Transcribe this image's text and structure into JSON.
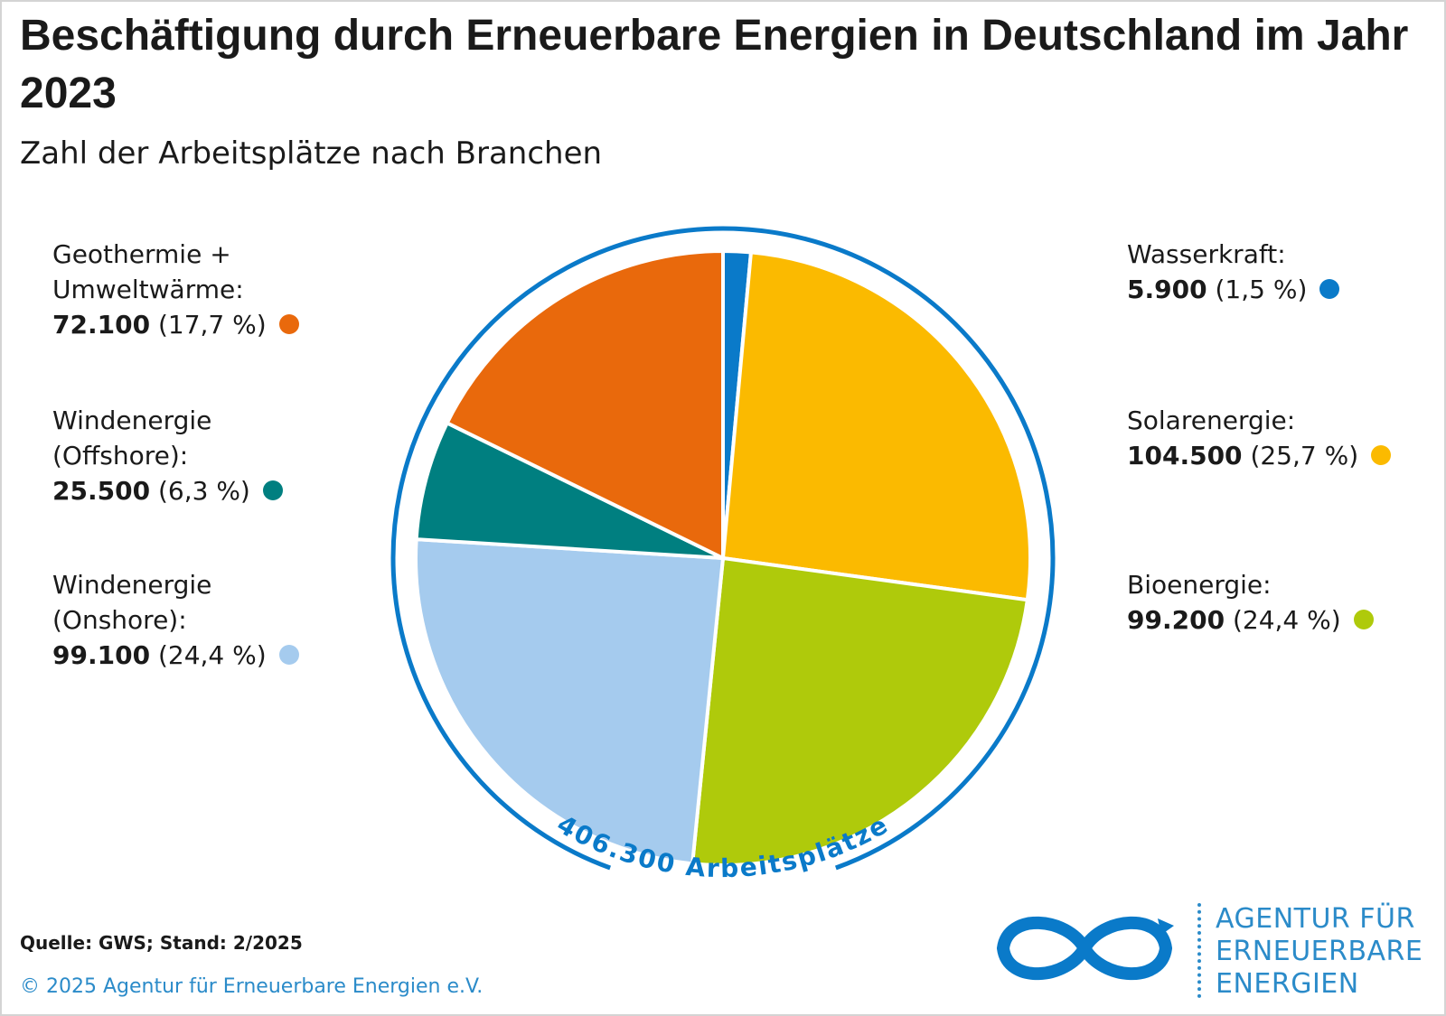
{
  "title": "Beschäftigung durch Erneuerbare Energien in Deutschland im Jahr 2023",
  "subtitle": "Zahl der Arbeitsplätze nach Branchen",
  "total_label": "406.300 Arbeitsplätze",
  "source": "Quelle: GWS; Stand: 2/2025",
  "copyright": "© 2025 Agentur für Erneuerbare Energien e.V.",
  "logo": {
    "line1": "AGENTUR FÜR",
    "line2": "ERNEUERBARE",
    "line3": "ENERGIEN",
    "color": "#0a73b8"
  },
  "chart_data": {
    "type": "pie",
    "total": 406300,
    "unit": "Arbeitsplätze",
    "slices": [
      {
        "name": "Wasserkraft",
        "value": 5900,
        "value_label": "5.900",
        "percent_label": "(1,5 %)",
        "color": "#0a7ac9"
      },
      {
        "name": "Solarenergie",
        "value": 104500,
        "value_label": "104.500",
        "percent_label": "(25,7 %)",
        "color": "#fbba00"
      },
      {
        "name": "Bioenergie",
        "value": 99200,
        "value_label": "99.200",
        "percent_label": "(24,4 %)",
        "color": "#afca0b"
      },
      {
        "name": "Windenergie (Onshore)",
        "value": 99100,
        "value_label": "99.100",
        "percent_label": "(24,4 %)",
        "color": "#a5cbee"
      },
      {
        "name": "Windenergie (Offshore)",
        "value": 25500,
        "value_label": "25.500",
        "percent_label": "(6,3 %)",
        "color": "#007f80"
      },
      {
        "name": "Geothermie + Umweltwärme",
        "value": 72100,
        "value_label": "72.100",
        "percent_label": "(17,7 %)",
        "color": "#e9690c"
      }
    ],
    "legend": {
      "left": [
        {
          "lines": [
            "Geothermie +",
            "Umweltwärme:"
          ],
          "slice": 5
        },
        {
          "lines": [
            "Windenergie",
            "(Offshore):"
          ],
          "slice": 4
        },
        {
          "lines": [
            "Windenergie",
            "(Onshore):"
          ],
          "slice": 3
        }
      ],
      "right": [
        {
          "lines": [
            "Wasserkraft:"
          ],
          "slice": 0
        },
        {
          "lines": [
            "Solarenergie:"
          ],
          "slice": 1
        },
        {
          "lines": [
            "Bioenergie:"
          ],
          "slice": 2
        }
      ]
    },
    "ring_color": "#0a7ac9"
  }
}
